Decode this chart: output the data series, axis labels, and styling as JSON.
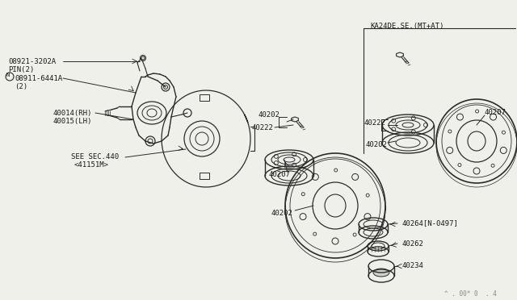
{
  "bg_color": "#f0f0eb",
  "line_color": "#2a2a2a",
  "text_color": "#1a1a1a",
  "font_size": 6.5,
  "small_font_size": 5.5,
  "labels": {
    "pin": "08921-3202A",
    "pin2": "PIN(2)",
    "nut": "08911-6441A",
    "nut2": "(2)",
    "knuckle_rh": "40014(RH)",
    "knuckle_lh": "40015(LH)",
    "see_sec": "SEE SEC.440",
    "see_sec2": "<41151M>",
    "ka24": "KA24DE.SE.(MT+AT)",
    "l40202": "40202",
    "l40222": "40222",
    "l40207": "40207",
    "l40264": "40264[N-0497]",
    "l40262": "40262",
    "l40234": "40234",
    "watermark": "^ . 00* 0  . 4"
  }
}
